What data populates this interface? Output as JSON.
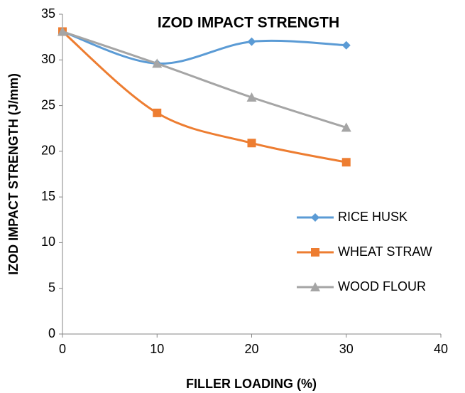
{
  "chart_data": {
    "type": "line",
    "title": "IZOD IMPACT STRENGTH",
    "x_label": "FILLER LOADING (%)",
    "y_label": "IZOD IMPACT STRENGTH (J/mm)",
    "x": [
      0,
      10,
      20,
      30
    ],
    "series": [
      {
        "name": "RICE HUSK",
        "color": "#5b9bd5",
        "marker": "diamond",
        "values": [
          33.1,
          29.6,
          32.0,
          31.6
        ]
      },
      {
        "name": "WHEAT STRAW",
        "color": "#ed7d31",
        "marker": "square",
        "values": [
          33.1,
          24.2,
          20.9,
          18.8
        ]
      },
      {
        "name": "WOOD FLOUR",
        "color": "#a5a5a5",
        "marker": "triangle",
        "values": [
          33.1,
          29.6,
          25.9,
          22.6
        ]
      }
    ],
    "smooth": true,
    "xlim": [
      0,
      40
    ],
    "xticks": [
      0,
      10,
      20,
      30,
      40
    ],
    "ylim": [
      0,
      35
    ],
    "yticks": [
      0,
      5,
      10,
      15,
      20,
      25,
      30,
      35
    ],
    "grid": false,
    "legend": "right"
  }
}
